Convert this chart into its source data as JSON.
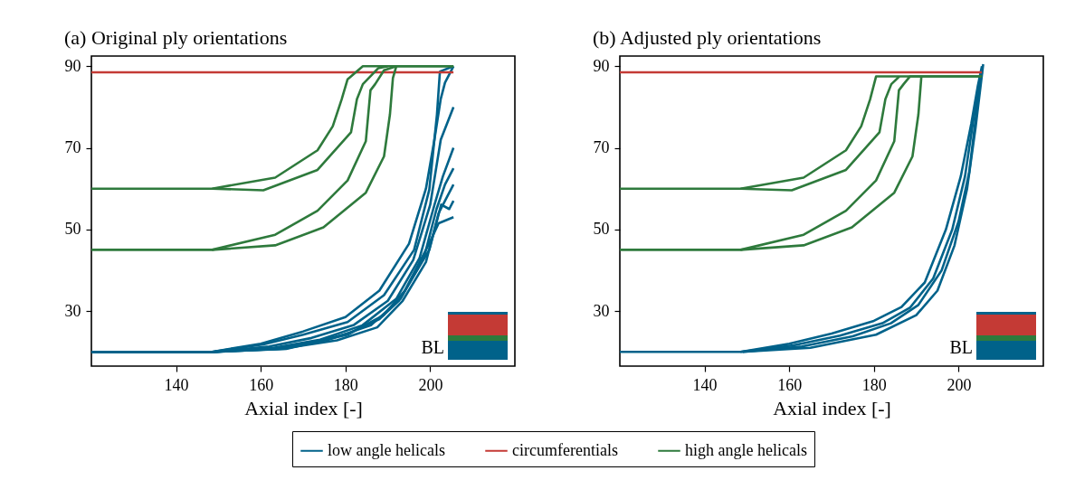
{
  "chart_data": [
    {
      "type": "line",
      "title": "(a) Original ply orientations",
      "xlabel": "Axial index [-]",
      "xlim": [
        120,
        220
      ],
      "ylim": [
        16.5,
        92.5
      ],
      "xticks": [
        140,
        160,
        180,
        200
      ],
      "yticks": [
        30,
        50,
        70,
        90
      ],
      "legend": "bottom",
      "annotations": [
        "BL"
      ],
      "series": [
        {
          "name": "low angle helicals",
          "color": "#00628a",
          "x": [
            120,
            148.5,
            160.6,
            170,
            180.5,
            189.1,
            196.2,
            199.8,
            201.6,
            202.3,
            205.5
          ],
          "values": [
            20,
            20,
            21.8,
            24.2,
            27.3,
            33.9,
            45,
            59.8,
            78.2,
            88.7,
            90
          ]
        },
        {
          "color": "#00628a",
          "x": [
            120,
            149,
            162,
            172,
            182,
            190,
            196,
            200,
            202.5,
            205.5
          ],
          "values": [
            20,
            20,
            21.3,
            23.4,
            26.6,
            32.5,
            42.5,
            56,
            72,
            80
          ]
        },
        {
          "color": "#00628a",
          "x": [
            120,
            149,
            163,
            174,
            184,
            192,
            197.5,
            201,
            203,
            205.5
          ],
          "values": [
            20,
            20,
            21,
            23,
            26.5,
            33,
            43,
            56,
            63,
            70
          ]
        },
        {
          "color": "#00628a",
          "x": [
            120,
            149,
            164,
            176,
            186,
            193,
            198.5,
            201.5,
            203.5,
            205.5
          ],
          "values": [
            20,
            20,
            20.9,
            23,
            26.5,
            33,
            43,
            55,
            61,
            65
          ]
        },
        {
          "color": "#00628a",
          "x": [
            120,
            149,
            165,
            178,
            187.5,
            193.5,
            199,
            202,
            204,
            205.5
          ],
          "values": [
            20,
            20,
            20.8,
            22.8,
            26,
            32.5,
            42,
            54,
            58,
            61
          ]
        },
        {
          "color": "#00628a",
          "x": [
            120,
            149,
            166,
            180.5,
            188,
            192.6,
            199.8,
            202.6,
            204.5,
            205.5
          ],
          "values": [
            20,
            20,
            20.8,
            24.4,
            28,
            32.5,
            45,
            56.1,
            55,
            57
          ]
        },
        {
          "color": "#00628a",
          "x": [
            120,
            149,
            166,
            180.5,
            189,
            194,
            199.5,
            202,
            205.5
          ],
          "values": [
            20,
            20,
            20.7,
            24.2,
            29,
            35,
            46,
            51.5,
            53
          ]
        },
        {
          "color": "#00628a",
          "x": [
            148.5,
            160,
            170,
            180,
            188,
            195,
            199,
            201,
            202.5,
            203.5,
            205.5
          ],
          "values": [
            20,
            22,
            25,
            28.5,
            35,
            46.5,
            60,
            72,
            82,
            86,
            90
          ]
        },
        {
          "name": "circumferentials",
          "color": "#c43a35",
          "x": [
            120,
            205.5
          ],
          "values": [
            88.5,
            88.5
          ]
        },
        {
          "name": "high angle helicals",
          "color": "#2e7a3c",
          "x": [
            120,
            148.5,
            163.4,
            173.4,
            177,
            179.1,
            180.5,
            184.1,
            205.5
          ],
          "values": [
            60,
            60,
            62.7,
            69.4,
            75.3,
            81.9,
            86.8,
            90,
            90
          ]
        },
        {
          "color": "#2e7a3c",
          "x": [
            148.5,
            160.6,
            173.4,
            181.3,
            182.7,
            184.1,
            187.7,
            190
          ],
          "values": [
            60,
            59.6,
            64.6,
            73.8,
            81.9,
            85.6,
            89.5,
            90
          ]
        },
        {
          "color": "#2e7a3c",
          "x": [
            120,
            148.5,
            163.4,
            173.4,
            180.5,
            184.8,
            185.9,
            187,
            189.1,
            192,
            205.5
          ],
          "values": [
            45,
            45,
            48.7,
            54.6,
            62,
            71.6,
            84.1,
            85.6,
            89,
            90,
            90
          ]
        },
        {
          "color": "#2e7a3c",
          "x": [
            148.5,
            163.4,
            174.8,
            184.8,
            189.1,
            190.5,
            191.2,
            192
          ],
          "values": [
            45,
            46.1,
            50.5,
            59,
            67.9,
            78.2,
            87.1,
            90
          ]
        }
      ]
    },
    {
      "type": "line",
      "title": "(b) Adjusted ply orientations",
      "xlabel": "Axial index [-]",
      "xlim": [
        120,
        220
      ],
      "ylim": [
        16.5,
        92.5
      ],
      "xticks": [
        140,
        160,
        180,
        200
      ],
      "yticks": [
        30,
        50,
        70,
        90
      ],
      "annotations": [
        "BL"
      ],
      "series": [
        {
          "color": "#00628a",
          "x": [
            120,
            148.5,
            160,
            170,
            180,
            186.5,
            192,
            197,
            200.5,
            203,
            204.5,
            205.5
          ],
          "values": [
            20,
            20,
            22,
            24.5,
            27.6,
            31,
            37,
            50,
            63,
            76,
            85,
            90
          ]
        },
        {
          "color": "#00628a",
          "x": [
            148.5,
            161,
            172,
            182,
            188.5,
            194,
            198.5,
            201.5,
            203.5,
            205.5
          ],
          "values": [
            20,
            21.6,
            24,
            27,
            30.8,
            38,
            50,
            63,
            77,
            88.5
          ]
        },
        {
          "color": "#00628a",
          "x": [
            149,
            163,
            175,
            184,
            190.5,
            196,
            200,
            202.5,
            204,
            205.5
          ],
          "values": [
            20,
            21.3,
            23.8,
            27,
            31.5,
            40,
            52,
            64,
            77,
            89.2
          ]
        },
        {
          "color": "#00628a",
          "x": [
            149,
            165,
            180.5,
            190,
            195,
            199,
            202,
            204,
            205.8
          ],
          "values": [
            20,
            21,
            24.2,
            29,
            35,
            46,
            60,
            75,
            90.5
          ]
        },
        {
          "color": "#c43a35",
          "x": [
            120,
            205.5
          ],
          "values": [
            88.5,
            88.5
          ]
        },
        {
          "color": "#2e7a3c",
          "x": [
            120,
            148.5,
            163.4,
            173.4,
            177,
            179.1,
            180.5,
            205.5
          ],
          "values": [
            60,
            60,
            62.7,
            69.4,
            75.3,
            81.9,
            87.5,
            87.5
          ]
        },
        {
          "color": "#2e7a3c",
          "x": [
            148.5,
            160.6,
            173.4,
            181.3,
            182.7,
            184.1,
            186
          ],
          "values": [
            60,
            59.6,
            64.6,
            73.8,
            81.9,
            85.6,
            87.5
          ]
        },
        {
          "color": "#2e7a3c",
          "x": [
            120,
            148.5,
            163.4,
            173.4,
            180.5,
            184.8,
            185.9,
            187,
            188.5,
            205.5
          ],
          "values": [
            45,
            45,
            48.7,
            54.6,
            62,
            71.6,
            84.1,
            85.6,
            87.5,
            87.5
          ]
        },
        {
          "color": "#2e7a3c",
          "x": [
            148.5,
            163.4,
            174.8,
            184.8,
            189.1,
            190.5,
            191.2
          ],
          "values": [
            45,
            46.1,
            50.5,
            59,
            67.9,
            78.2,
            87.5
          ]
        }
      ]
    }
  ]
}
